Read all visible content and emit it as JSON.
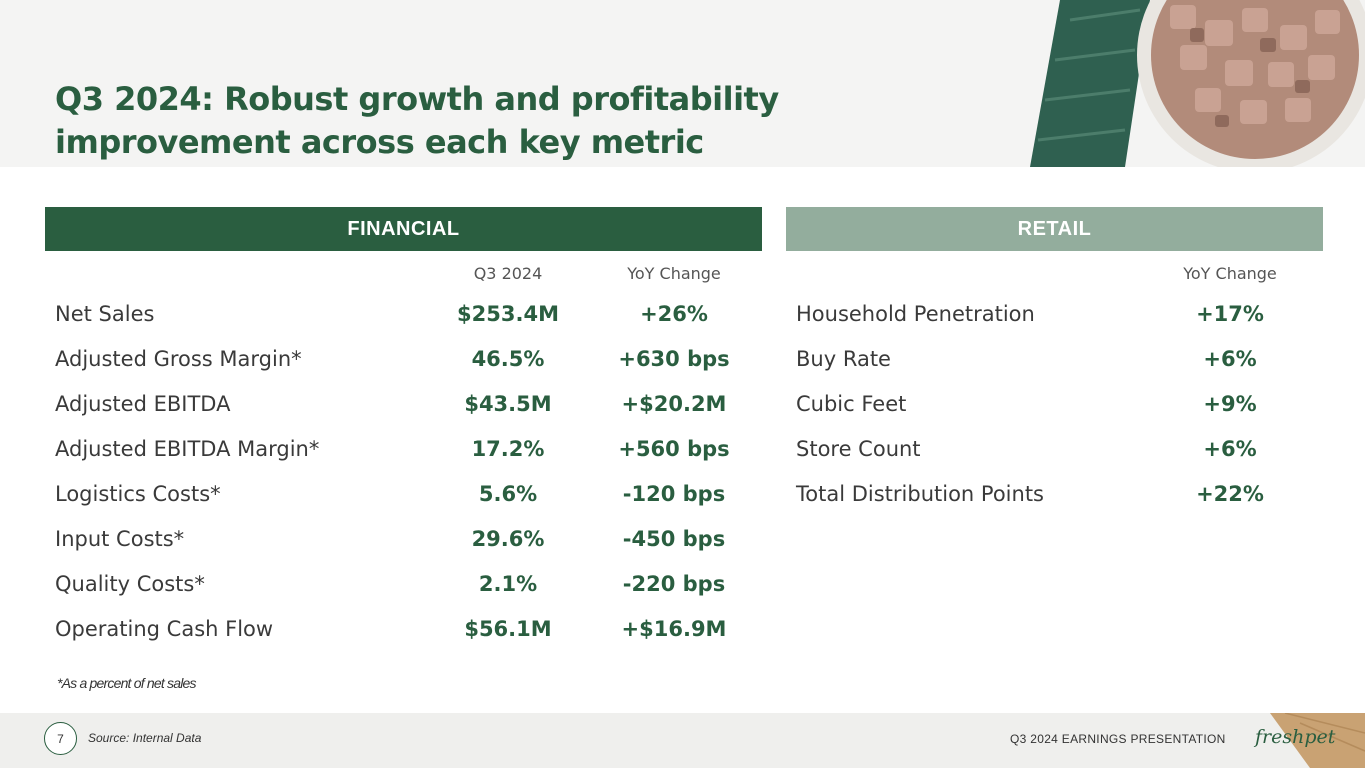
{
  "title": {
    "bold": "Q3 2024:",
    "rest": " Robust growth and profitability improvement across each key metric"
  },
  "financial": {
    "header": "FINANCIAL",
    "col_period": "Q3 2024",
    "col_change": "YoY Change",
    "rows": [
      {
        "label": "Net Sales",
        "value": "$253.4M",
        "change": "+26%"
      },
      {
        "label": "Adjusted Gross Margin*",
        "value": "46.5%",
        "change": "+630 bps"
      },
      {
        "label": "Adjusted EBITDA",
        "value": "$43.5M",
        "change": "+$20.2M"
      },
      {
        "label": "Adjusted EBITDA Margin*",
        "value": "17.2%",
        "change": "+560 bps"
      },
      {
        "label": "Logistics Costs*",
        "value": "5.6%",
        "change": "-120 bps"
      },
      {
        "label": "Input Costs*",
        "value": "29.6%",
        "change": "-450 bps"
      },
      {
        "label": "Quality Costs*",
        "value": "2.1%",
        "change": "-220 bps"
      },
      {
        "label": "Operating Cash Flow",
        "value": "$56.1M",
        "change": "+$16.9M"
      }
    ],
    "footnote": "*As a percent of net sales"
  },
  "retail": {
    "header": "RETAIL",
    "col_change": "YoY Change",
    "rows": [
      {
        "label": "Household Penetration",
        "change": "+17%"
      },
      {
        "label": "Buy Rate",
        "change": "+6%"
      },
      {
        "label": "Cubic Feet",
        "change": "+9%"
      },
      {
        "label": "Store Count",
        "change": "+6%"
      },
      {
        "label": "Total Distribution Points",
        "change": "+22%"
      }
    ]
  },
  "footer": {
    "page_number": "7",
    "source": "Source: Internal Data",
    "presentation": "Q3 2024 EARNINGS PRESENTATION",
    "logo": "freshpet"
  },
  "colors": {
    "primary_green": "#2a5e40",
    "light_green": "#93ad9d"
  }
}
